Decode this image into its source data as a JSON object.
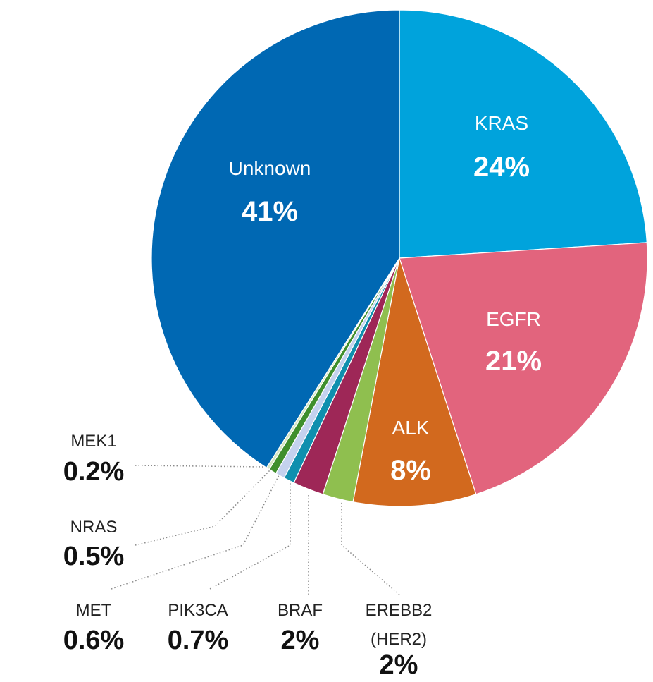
{
  "chart_data": {
    "type": "pie",
    "slices": [
      {
        "label": "KRAS",
        "pct_label": "24%",
        "value": 24,
        "color": "#00a3dc"
      },
      {
        "label": "EGFR",
        "pct_label": "21%",
        "value": 21,
        "color": "#e2647d"
      },
      {
        "label": "ALK",
        "pct_label": "8%",
        "value": 8,
        "color": "#d2691e"
      },
      {
        "label": "EREBB2",
        "label2": "(HER2)",
        "pct_label": "2%",
        "value": 2,
        "color": "#8fbf4f"
      },
      {
        "label": "BRAF",
        "pct_label": "2%",
        "value": 2,
        "color": "#9e2757"
      },
      {
        "label": "PIK3CA",
        "pct_label": "0.7%",
        "value": 0.7,
        "color": "#0f8fae"
      },
      {
        "label": "MET",
        "pct_label": "0.6%",
        "value": 0.6,
        "color": "#c4d2ee"
      },
      {
        "label": "NRAS",
        "pct_label": "0.5%",
        "value": 0.5,
        "color": "#3f8f2c"
      },
      {
        "label": "MEK1",
        "pct_label": "0.2%",
        "value": 0.2,
        "color": "#d7e7c4"
      },
      {
        "label": "Unknown",
        "pct_label": "41%",
        "value": 41,
        "color": "#0068b3"
      }
    ]
  }
}
